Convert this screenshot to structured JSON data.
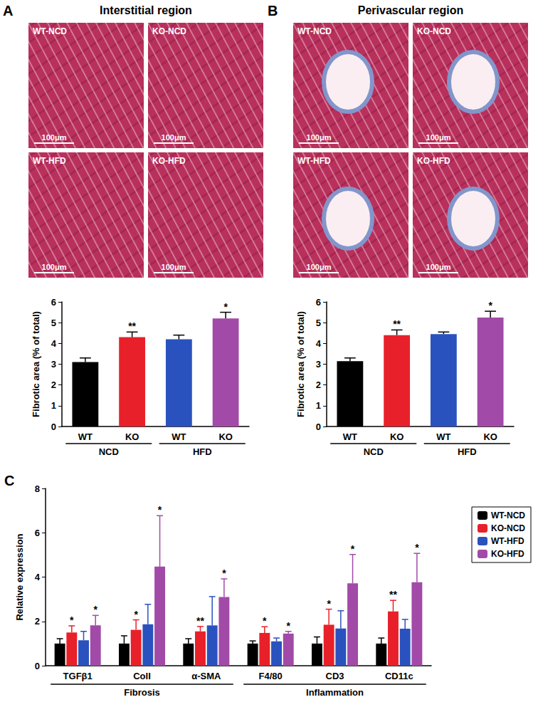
{
  "chart_data": [
    {
      "type": "bar",
      "panel": "A",
      "title": "Interstitial region",
      "images": [
        {
          "label": "WT-NCD",
          "scale_bar": "100μm"
        },
        {
          "label": "KO-NCD",
          "scale_bar": "100μm"
        },
        {
          "label": "WT-HFD",
          "scale_bar": "100μm"
        },
        {
          "label": "KO-HFD",
          "scale_bar": "100μm"
        }
      ],
      "y_label": "Fibrotic area (% of total)",
      "categories": [
        "WT",
        "KO",
        "WT",
        "KO"
      ],
      "group_labels": [
        "NCD",
        "NCD",
        "HFD",
        "HFD"
      ],
      "values": [
        3.1,
        4.3,
        4.2,
        5.2
      ],
      "errors": [
        0.2,
        0.25,
        0.2,
        0.3
      ],
      "significance": [
        null,
        "**",
        null,
        "*"
      ],
      "colors": [
        "#000000",
        "#e8202a",
        "#2a52be",
        "#a24aa8"
      ],
      "ylim": [
        0,
        6
      ],
      "yticks": [
        0,
        1,
        2,
        3,
        4,
        5,
        6
      ],
      "grid": false
    },
    {
      "type": "bar",
      "panel": "B",
      "title": "Perivascular region",
      "images": [
        {
          "label": "WT-NCD",
          "scale_bar": "100μm"
        },
        {
          "label": "KO-NCD",
          "scale_bar": "100μm"
        },
        {
          "label": "WT-HFD",
          "scale_bar": "100μm"
        },
        {
          "label": "KO-HFD",
          "scale_bar": "100μm"
        }
      ],
      "y_label": "Fibrotic area (% of total)",
      "categories": [
        "WT",
        "KO",
        "WT",
        "KO"
      ],
      "group_labels": [
        "NCD",
        "NCD",
        "HFD",
        "HFD"
      ],
      "values": [
        3.15,
        4.4,
        4.45,
        5.25
      ],
      "errors": [
        0.15,
        0.25,
        0.1,
        0.3
      ],
      "significance": [
        null,
        "**",
        null,
        "*"
      ],
      "colors": [
        "#000000",
        "#e8202a",
        "#2a52be",
        "#a24aa8"
      ],
      "ylim": [
        0,
        6
      ],
      "yticks": [
        0,
        1,
        2,
        3,
        4,
        5,
        6
      ],
      "grid": false
    },
    {
      "type": "bar",
      "panel": "C",
      "y_label": "Relative expression",
      "categories": [
        "TGFβ1",
        "ColI",
        "α-SMA",
        "F4/80",
        "CD3",
        "CD11c"
      ],
      "group_labels": [
        "Fibrosis",
        "Fibrosis",
        "Fibrosis",
        "Inflammation",
        "Inflammation",
        "Inflammation"
      ],
      "series": [
        {
          "name": "WT-NCD",
          "color": "#000000",
          "values": [
            1,
            1,
            1,
            1,
            1,
            1
          ],
          "errors": [
            0.22,
            0.35,
            0.22,
            0.12,
            0.3,
            0.25
          ],
          "significance": [
            null,
            null,
            null,
            null,
            null,
            null
          ]
        },
        {
          "name": "KO-NCD",
          "color": "#e8202a",
          "values": [
            1.5,
            1.62,
            1.55,
            1.48,
            1.85,
            2.45
          ],
          "errors": [
            0.3,
            0.45,
            0.22,
            0.28,
            0.7,
            0.5
          ],
          "significance": [
            "*",
            "*",
            "**",
            "*",
            "*",
            "**"
          ]
        },
        {
          "name": "WT-HFD",
          "color": "#2a52be",
          "values": [
            1.15,
            1.87,
            1.82,
            1.1,
            1.68,
            1.67
          ],
          "errors": [
            0.4,
            0.9,
            1.3,
            0.15,
            0.8,
            0.42
          ],
          "significance": [
            null,
            null,
            null,
            null,
            null,
            null
          ]
        },
        {
          "name": "KO-HFD",
          "color": "#a24aa8",
          "values": [
            1.82,
            4.47,
            3.1,
            1.45,
            3.72,
            3.77
          ],
          "errors": [
            0.45,
            2.3,
            0.82,
            0.1,
            1.3,
            1.3
          ],
          "significance": [
            "*",
            "*",
            "*",
            "*",
            "*",
            "*"
          ]
        }
      ],
      "ylim": [
        0,
        8
      ],
      "yticks": [
        0,
        2,
        4,
        6,
        8
      ],
      "grid": false,
      "legend": "upper right"
    }
  ]
}
